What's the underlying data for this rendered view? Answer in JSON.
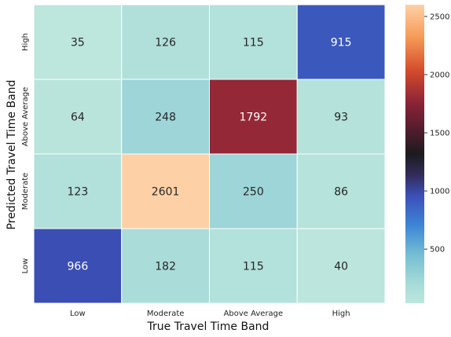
{
  "chart_data": {
    "type": "heatmap",
    "title": "",
    "xlabel": "True Travel Time Band",
    "ylabel": "Predicted Travel Time Band",
    "x_categories": [
      "Low",
      "Moderate",
      "Above Average",
      "High"
    ],
    "y_categories": [
      "High",
      "Above Average",
      "Moderate",
      "Low"
    ],
    "values": [
      [
        35,
        126,
        115,
        915
      ],
      [
        64,
        248,
        1792,
        93
      ],
      [
        123,
        2601,
        250,
        86
      ],
      [
        966,
        182,
        115,
        40
      ]
    ],
    "colorbar": {
      "range": [
        35,
        2601
      ],
      "ticks": [
        500,
        1000,
        1500,
        2000,
        2500
      ],
      "colormap": "icefire"
    },
    "annotations": true,
    "cell_border_color": "#ffffff"
  }
}
